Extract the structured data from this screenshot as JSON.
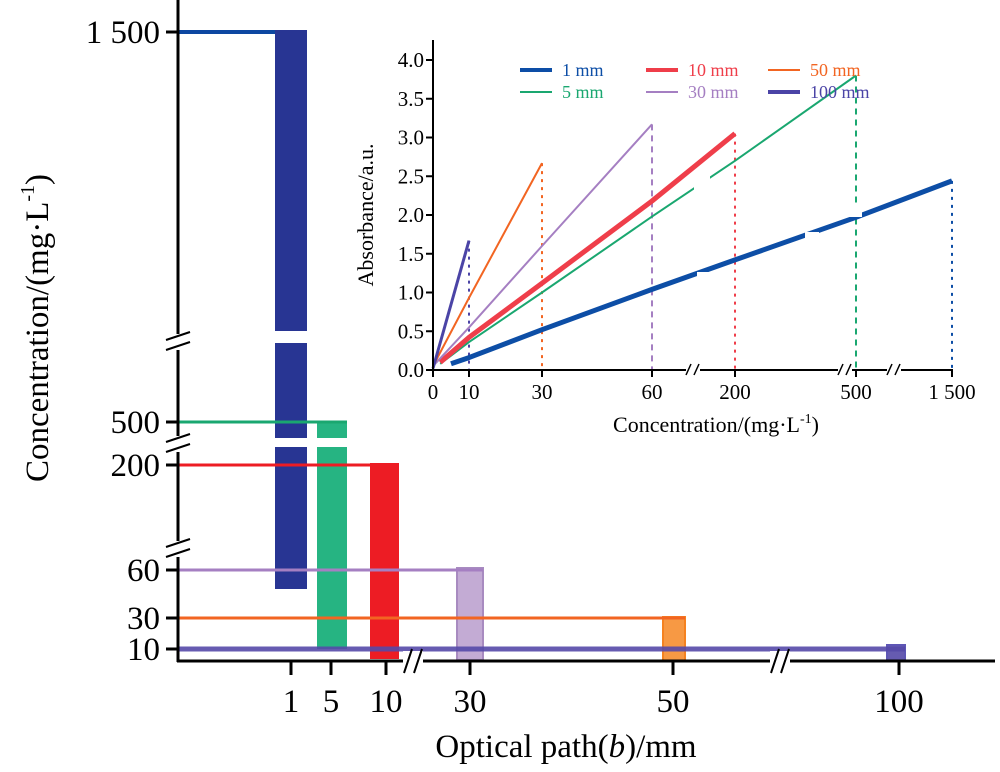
{
  "chart_data": [
    {
      "id": "main",
      "type": "bar",
      "subtype": "range-bar (floating columns) with reference lines",
      "xlabel_prefix": "Optical path(",
      "xlabel_var": "b",
      "xlabel_suffix": ")/mm",
      "ylabel": "Concentration/(mg·L",
      "ylabel_sup": "-1",
      "ylabel_close": ")",
      "x_axis": {
        "scale": "categorical with breaks",
        "tick_labels": [
          "1",
          "5",
          "10",
          "30",
          "50",
          "100"
        ],
        "breaks_between": [
          [
            "10",
            "30"
          ],
          [
            "50",
            "100"
          ]
        ]
      },
      "y_axis": {
        "scale": "piecewise with breaks",
        "tick_labels": [
          "10",
          "30",
          "60",
          "200",
          "500",
          "1 500"
        ],
        "tick_values": [
          10,
          30,
          60,
          200,
          500,
          1500
        ],
        "breaks_between": [
          [
            60,
            200
          ],
          [
            200,
            500
          ],
          [
            500,
            1500
          ]
        ]
      },
      "series": [
        {
          "name": "1 mm",
          "path_mm": 1,
          "color": "#283593",
          "line_color": "#0d47a1",
          "range": [
            45,
            1500
          ],
          "ref_line": 1500,
          "segmented": true
        },
        {
          "name": "5 mm",
          "path_mm": 5,
          "color": "#26b482",
          "line_color": "#1aa770",
          "range": [
            10,
            500
          ],
          "ref_line": 500,
          "segmented": true
        },
        {
          "name": "10 mm",
          "path_mm": 10,
          "color": "#ed1c24",
          "line_color": "#ed1c24",
          "range": [
            5,
            200
          ],
          "ref_line": 200,
          "segmented": false
        },
        {
          "name": "30 mm",
          "path_mm": 30,
          "color": "#b89ccc",
          "line_color": "#a57fc2",
          "range": [
            5,
            60
          ],
          "ref_line": 60,
          "segmented": false
        },
        {
          "name": "50 mm",
          "path_mm": 50,
          "color": "#f7943a",
          "line_color": "#f26522",
          "range": [
            5,
            30
          ],
          "ref_line": 30,
          "segmented": false
        },
        {
          "name": "100 mm",
          "path_mm": 100,
          "color": "#5549a8",
          "line_color": "#5549a8",
          "range": [
            0,
            10
          ],
          "ref_line": 10,
          "segmented": false
        }
      ]
    },
    {
      "id": "inset",
      "type": "line",
      "xlabel": "Concentration/(mg·L",
      "xlabel_sup": "-1",
      "xlabel_close": ")",
      "ylabel": "Absorbance/a.u.",
      "ylim": [
        0,
        4.0
      ],
      "y_ticks": [
        "0.0",
        "0.5",
        "1.0",
        "1.5",
        "2.0",
        "2.5",
        "3.0",
        "3.5",
        "4.0"
      ],
      "x_ticks": [
        "0",
        "10",
        "30",
        "60",
        "200",
        "500",
        "1 500"
      ],
      "x_tick_values": [
        0,
        10,
        30,
        60,
        200,
        500,
        1500
      ],
      "x_breaks_between": [
        [
          60,
          200
        ],
        [
          200,
          500
        ],
        [
          500,
          1500
        ]
      ],
      "legend": {
        "placement": "top",
        "columns": 3,
        "entries": [
          "1 mm",
          "10 mm",
          "50 mm",
          "5 mm",
          "30 mm",
          "100 mm"
        ]
      },
      "series": [
        {
          "name": "1 mm",
          "color": "#0d4ea6",
          "x": [
            5,
            10,
            30,
            60,
            200,
            500,
            1500
          ],
          "y": [
            0.08,
            0.16,
            0.52,
            1.04,
            1.42,
            1.97,
            2.44
          ],
          "dropline_at": 1500,
          "dropline_style": "dotted"
        },
        {
          "name": "5 mm",
          "color": "#1aa770",
          "x": [
            2,
            10,
            30,
            60,
            200,
            500
          ],
          "y": [
            0.08,
            0.36,
            1.0,
            1.98,
            2.7,
            3.8
          ],
          "dropline_at": 500,
          "dropline_style": "dashed"
        },
        {
          "name": "10 mm",
          "color": "#ef3e4a",
          "x": [
            2,
            10,
            30,
            60,
            200
          ],
          "y": [
            0.1,
            0.42,
            1.12,
            2.18,
            3.05
          ],
          "dropline_at": 200,
          "dropline_style": "dotted"
        },
        {
          "name": "30 mm",
          "color": "#a57fc2",
          "x": [
            0,
            10,
            30,
            60
          ],
          "y": [
            0.05,
            0.55,
            1.6,
            3.17
          ],
          "dropline_at": 60,
          "dropline_style": "dashed"
        },
        {
          "name": "50 mm",
          "color": "#f26522",
          "x": [
            0,
            10,
            30
          ],
          "y": [
            0.05,
            0.93,
            2.67
          ],
          "dropline_at": 30,
          "dropline_style": "dotted"
        },
        {
          "name": "100 mm",
          "color": "#4b44a6",
          "x": [
            0,
            10
          ],
          "y": [
            0.02,
            1.67
          ],
          "dropline_at": 10,
          "dropline_style": "dotted"
        }
      ]
    }
  ]
}
